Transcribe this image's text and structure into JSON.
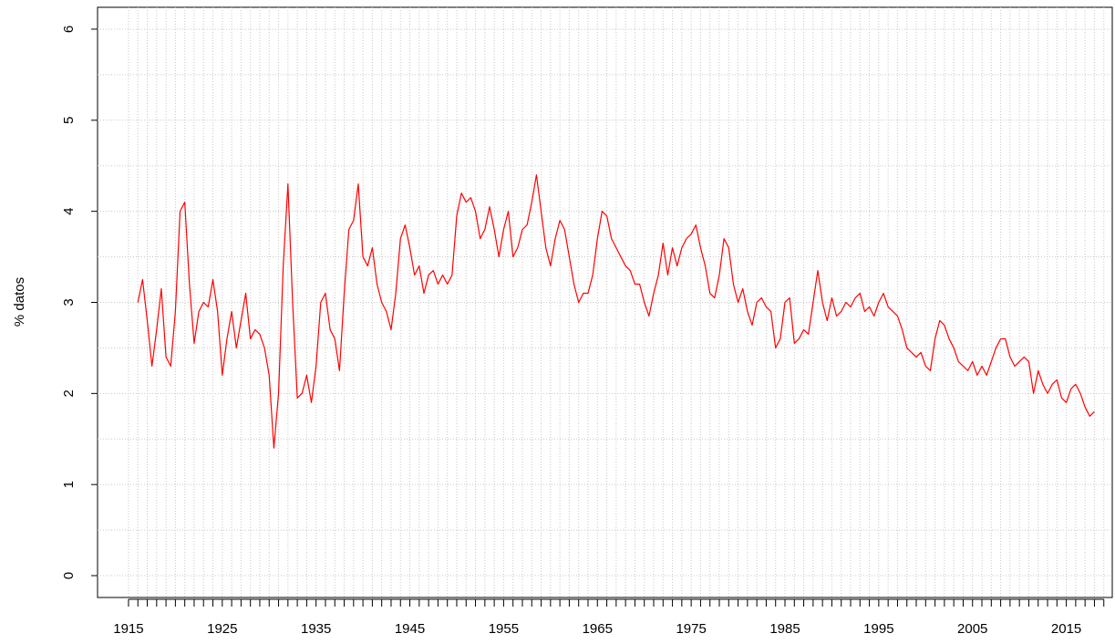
{
  "chart_data": {
    "type": "line",
    "y_label": "% datos",
    "x": [
      1916,
      1916.5,
      1917,
      1917.5,
      1918,
      1918.5,
      1919,
      1919.5,
      1920,
      1920.5,
      1921,
      1921.5,
      1922,
      1922.5,
      1923,
      1923.5,
      1924,
      1924.5,
      1925,
      1925.5,
      1926,
      1926.5,
      1927,
      1927.5,
      1928,
      1928.5,
      1929,
      1929.5,
      1930,
      1930.5,
      1931,
      1931.5,
      1932,
      1932.5,
      1933,
      1933.5,
      1934,
      1934.5,
      1935,
      1935.5,
      1936,
      1936.5,
      1937,
      1937.5,
      1938,
      1938.5,
      1939,
      1939.5,
      1940,
      1940.5,
      1941,
      1941.5,
      1942,
      1942.5,
      1943,
      1943.5,
      1944,
      1944.5,
      1945,
      1945.5,
      1946,
      1946.5,
      1947,
      1947.5,
      1948,
      1948.5,
      1949,
      1949.5,
      1950,
      1950.5,
      1951,
      1951.5,
      1952,
      1952.5,
      1953,
      1953.5,
      1954,
      1954.5,
      1955,
      1955.5,
      1956,
      1956.5,
      1957,
      1957.5,
      1958,
      1958.5,
      1959,
      1959.5,
      1960,
      1960.5,
      1961,
      1961.5,
      1962,
      1962.5,
      1963,
      1963.5,
      1964,
      1964.5,
      1965,
      1965.5,
      1966,
      1966.5,
      1967,
      1967.5,
      1968,
      1968.5,
      1969,
      1969.5,
      1970,
      1970.5,
      1971,
      1971.5,
      1972,
      1972.5,
      1973,
      1973.5,
      1974,
      1974.5,
      1975,
      1975.5,
      1976,
      1976.5,
      1977,
      1977.5,
      1978,
      1978.5,
      1979,
      1979.5,
      1980,
      1980.5,
      1981,
      1981.5,
      1982,
      1982.5,
      1983,
      1983.5,
      1984,
      1984.5,
      1985,
      1985.5,
      1986,
      1986.5,
      1987,
      1987.5,
      1988,
      1988.5,
      1989,
      1989.5,
      1990,
      1990.5,
      1991,
      1991.5,
      1992,
      1992.5,
      1993,
      1993.5,
      1994,
      1994.5,
      1995,
      1995.5,
      1996,
      1996.5,
      1997,
      1997.5,
      1998,
      1998.5,
      1999,
      1999.5,
      2000,
      2000.5,
      2001,
      2001.5,
      2002,
      2002.5,
      2003,
      2003.5,
      2004,
      2004.5,
      2005,
      2005.5,
      2006,
      2006.5,
      2007,
      2007.5,
      2008,
      2008.5,
      2009,
      2009.5,
      2010,
      2010.5,
      2011,
      2011.5,
      2012,
      2012.5,
      2013,
      2013.5,
      2014,
      2014.5,
      2015,
      2015.5,
      2016,
      2016.5,
      2017,
      2017.5,
      2018
    ],
    "series": [
      {
        "color": "#ff0000",
        "values": [
          3.0,
          3.25,
          2.8,
          2.3,
          2.7,
          3.15,
          2.4,
          2.3,
          2.9,
          4.0,
          4.1,
          3.2,
          2.55,
          2.9,
          3.0,
          2.95,
          3.25,
          2.9,
          2.2,
          2.6,
          2.9,
          2.5,
          2.8,
          3.1,
          2.6,
          2.7,
          2.65,
          2.5,
          2.2,
          1.4,
          2.0,
          3.4,
          4.3,
          3.0,
          1.95,
          2.0,
          2.2,
          1.9,
          2.3,
          3.0,
          3.1,
          2.7,
          2.6,
          2.25,
          3.1,
          3.8,
          3.9,
          4.3,
          3.5,
          3.4,
          3.6,
          3.2,
          3.0,
          2.9,
          2.7,
          3.1,
          3.7,
          3.85,
          3.6,
          3.3,
          3.4,
          3.1,
          3.3,
          3.35,
          3.2,
          3.3,
          3.2,
          3.3,
          3.95,
          4.2,
          4.1,
          4.15,
          4.0,
          3.7,
          3.8,
          4.05,
          3.8,
          3.5,
          3.8,
          4.0,
          3.5,
          3.6,
          3.8,
          3.85,
          4.1,
          4.4,
          4.0,
          3.6,
          3.4,
          3.7,
          3.9,
          3.8,
          3.5,
          3.2,
          3.0,
          3.1,
          3.1,
          3.3,
          3.7,
          4.0,
          3.95,
          3.7,
          3.6,
          3.5,
          3.4,
          3.35,
          3.2,
          3.2,
          3.0,
          2.85,
          3.1,
          3.3,
          3.65,
          3.3,
          3.6,
          3.4,
          3.6,
          3.7,
          3.75,
          3.85,
          3.6,
          3.4,
          3.1,
          3.05,
          3.3,
          3.7,
          3.6,
          3.2,
          3.0,
          3.15,
          2.9,
          2.75,
          3.0,
          3.05,
          2.95,
          2.9,
          2.5,
          2.6,
          3.0,
          3.05,
          2.55,
          2.6,
          2.7,
          2.65,
          3.0,
          3.35,
          3.0,
          2.8,
          3.05,
          2.85,
          2.9,
          3.0,
          2.95,
          3.05,
          3.1,
          2.9,
          2.95,
          2.85,
          3.0,
          3.1,
          2.95,
          2.9,
          2.85,
          2.7,
          2.5,
          2.45,
          2.4,
          2.45,
          2.3,
          2.25,
          2.6,
          2.8,
          2.75,
          2.6,
          2.5,
          2.35,
          2.3,
          2.25,
          2.35,
          2.2,
          2.3,
          2.2,
          2.35,
          2.5,
          2.6,
          2.6,
          2.4,
          2.3,
          2.35,
          2.4,
          2.35,
          2.0,
          2.25,
          2.1,
          2.0,
          2.1,
          2.15,
          1.95,
          1.9,
          2.05,
          2.1,
          2.0,
          1.85,
          1.75,
          1.8
        ]
      }
    ],
    "xlim": [
      1911.7,
      2019.9
    ],
    "xticks": [
      1915,
      1925,
      1935,
      1945,
      1955,
      1965,
      1975,
      1985,
      1995,
      2005,
      2015
    ],
    "xminorticks": [
      1915,
      1916,
      1917,
      1918,
      1919,
      1920,
      1921,
      1922,
      1923,
      1924,
      1925,
      1926,
      1927,
      1928,
      1929,
      1930,
      1931,
      1932,
      1933,
      1934,
      1935,
      1936,
      1937,
      1938,
      1939,
      1940,
      1941,
      1942,
      1943,
      1944,
      1945,
      1946,
      1947,
      1948,
      1949,
      1950,
      1951,
      1952,
      1953,
      1954,
      1955,
      1956,
      1957,
      1958,
      1959,
      1960,
      1961,
      1962,
      1963,
      1964,
      1965,
      1966,
      1967,
      1968,
      1969,
      1970,
      1971,
      1972,
      1973,
      1974,
      1975,
      1976,
      1977,
      1978,
      1979,
      1980,
      1981,
      1982,
      1983,
      1984,
      1985,
      1986,
      1987,
      1988,
      1989,
      1990,
      1991,
      1992,
      1993,
      1994,
      1995,
      1996,
      1997,
      1998,
      1999,
      2000,
      2001,
      2002,
      2003,
      2004,
      2005,
      2006,
      2007,
      2008,
      2009,
      2010,
      2011,
      2012,
      2013,
      2014,
      2015,
      2016,
      2017,
      2018,
      2019
    ],
    "ylim": [
      -0.24,
      6.24
    ],
    "yticks": [
      0,
      1,
      2,
      3,
      4,
      5,
      6
    ],
    "ygrid": [
      0,
      0.5,
      1,
      1.5,
      2,
      2.5,
      3,
      3.5,
      4,
      4.5,
      5,
      5.5,
      6
    ],
    "grid": true
  }
}
